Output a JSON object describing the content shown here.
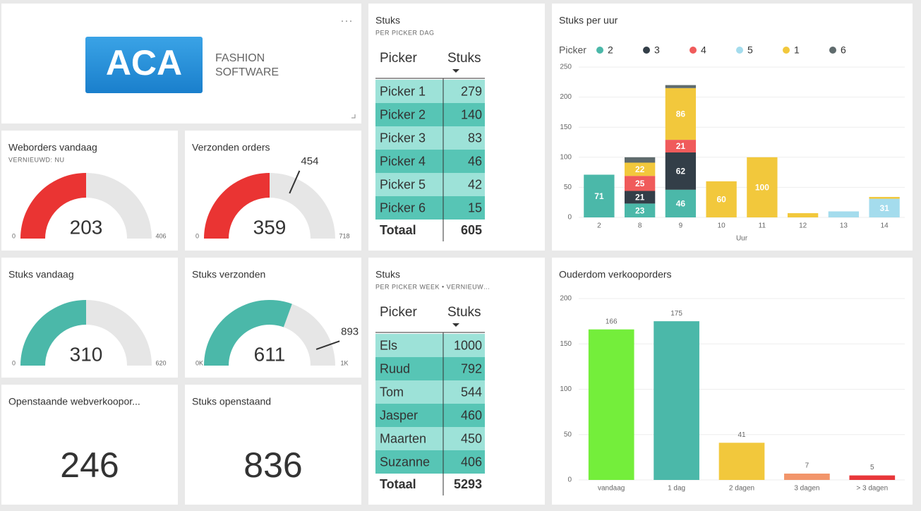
{
  "logo": {
    "brand": "ACA",
    "line1": "FASHION",
    "line2": "SOFTWARE"
  },
  "gauges": [
    {
      "title": "Weborders vandaag",
      "subtitle": "VERNIEUWD: NU",
      "value": 203,
      "min": 0,
      "max": 406,
      "color": "#ea3433"
    },
    {
      "title": "Verzonden orders",
      "value": 359,
      "min": 0,
      "max": 718,
      "target": 454,
      "color": "#ea3433"
    },
    {
      "title": "Stuks vandaag",
      "value": 310,
      "min": 0,
      "max": 620,
      "color": "#4bb8a9"
    },
    {
      "title": "Stuks verzonden",
      "value": 611,
      "min": {
        "value": 0,
        "label": "0K"
      },
      "max": {
        "value": 1000,
        "label": "1K"
      },
      "target": 893,
      "color": "#4bb8a9"
    }
  ],
  "cards": [
    {
      "title": "Openstaande webverkoopor...",
      "value": 246
    },
    {
      "title": "Stuks openstaand",
      "value": 836
    }
  ],
  "tables": [
    {
      "title": "Stuks",
      "subtitle": "PER PICKER DAG",
      "columns": [
        "Picker",
        "Stuks"
      ],
      "rows": [
        [
          "Picker 1",
          279
        ],
        [
          "Picker 2",
          140
        ],
        [
          "Picker 3",
          83
        ],
        [
          "Picker 4",
          46
        ],
        [
          "Picker 5",
          42
        ],
        [
          "Picker 6",
          15
        ]
      ],
      "total": [
        "Totaal",
        605
      ]
    },
    {
      "title": "Stuks",
      "subtitle": "PER PICKER WEEK  •  VERNIEUW…",
      "columns": [
        "Picker",
        "Stuks"
      ],
      "rows": [
        [
          "Els",
          1000
        ],
        [
          "Ruud",
          792
        ],
        [
          "Tom",
          544
        ],
        [
          "Jasper",
          460
        ],
        [
          "Maarten",
          450
        ],
        [
          "Suzanne",
          406
        ]
      ],
      "total": [
        "Totaal",
        5293
      ]
    }
  ],
  "chart_data": [
    {
      "type": "stacked_bar",
      "title": "Stuks per uur",
      "legend_title": "Picker",
      "x_label": "Uur",
      "categories": [
        "2",
        "8",
        "9",
        "10",
        "11",
        "12",
        "13",
        "14"
      ],
      "series": [
        {
          "name": "2",
          "color": "#4bb8a9",
          "values": [
            71,
            23,
            46,
            null,
            null,
            null,
            null,
            null
          ]
        },
        {
          "name": "3",
          "color": "#333e48",
          "values": [
            null,
            21,
            62,
            null,
            null,
            null,
            null,
            null
          ]
        },
        {
          "name": "4",
          "color": "#f05b5b",
          "values": [
            null,
            25,
            21,
            null,
            null,
            null,
            null,
            null
          ]
        },
        {
          "name": "5",
          "color": "#a4dced",
          "values": [
            null,
            null,
            null,
            null,
            null,
            null,
            10,
            31
          ]
        },
        {
          "name": "1",
          "color": "#f2c83c",
          "values": [
            null,
            22,
            86,
            60,
            100,
            7,
            null,
            3
          ]
        },
        {
          "name": "6",
          "color": "#5f6b6d",
          "values": [
            null,
            9,
            5,
            null,
            null,
            null,
            null,
            null
          ]
        }
      ],
      "ylim": [
        0,
        250
      ],
      "yticks": [
        0,
        50,
        100,
        150,
        200,
        250
      ],
      "grid": true
    },
    {
      "type": "bar",
      "title": "Ouderdom verkooporders",
      "categories": [
        "vandaag",
        "1 dag",
        "2 dagen",
        "3 dagen",
        "> 3 dagen"
      ],
      "values": [
        166,
        175,
        41,
        7,
        5
      ],
      "colors": [
        "#74ee3b",
        "#4bb8a9",
        "#f2c83c",
        "#f2956a",
        "#e8373a"
      ],
      "ylim": [
        0,
        200
      ],
      "yticks": [
        0,
        50,
        100,
        150,
        200
      ],
      "grid": true
    }
  ]
}
